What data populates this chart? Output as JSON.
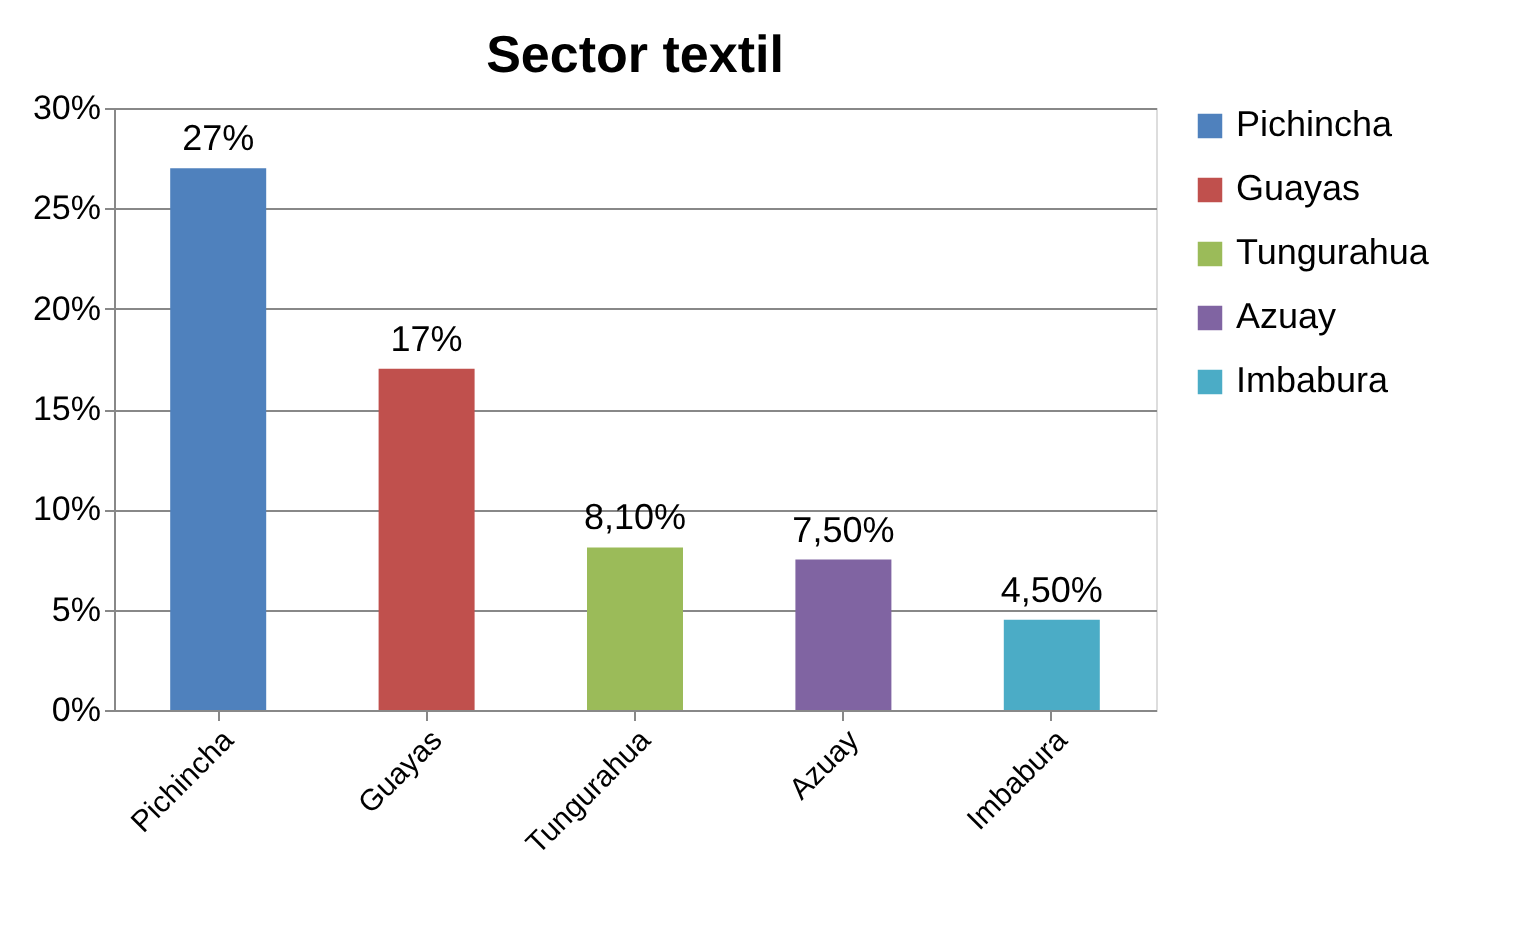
{
  "chart_data": {
    "type": "bar",
    "title": "Sector textil",
    "categories": [
      "Pichincha",
      "Guayas",
      "Tungurahua",
      "Azuay",
      "Imbabura"
    ],
    "series": [
      {
        "name": "Pichincha",
        "color": "#4f81bd",
        "values": [
          27,
          null,
          null,
          null,
          null
        ],
        "value_labels": [
          "27%",
          null,
          null,
          null,
          null
        ]
      },
      {
        "name": "Guayas",
        "color": "#c0504d",
        "values": [
          null,
          17,
          null,
          null,
          null
        ],
        "value_labels": [
          null,
          "17%",
          null,
          null,
          null
        ]
      },
      {
        "name": "Tungurahua",
        "color": "#9bbb59",
        "values": [
          null,
          null,
          8.1,
          null,
          null
        ],
        "value_labels": [
          null,
          null,
          "8,10%",
          null,
          null
        ]
      },
      {
        "name": "Azuay",
        "color": "#8064a2",
        "values": [
          null,
          null,
          null,
          7.5,
          null
        ],
        "value_labels": [
          null,
          null,
          null,
          "7,50%",
          null
        ]
      },
      {
        "name": "Imbabura",
        "color": "#4bacc6",
        "values": [
          null,
          null,
          null,
          null,
          4.5
        ],
        "value_labels": [
          null,
          null,
          null,
          null,
          "4,50%"
        ]
      }
    ],
    "stacked": true,
    "ylim": [
      0,
      30
    ],
    "yticks": [
      {
        "value": 0,
        "label": "0%"
      },
      {
        "value": 5,
        "label": "5%"
      },
      {
        "value": 10,
        "label": "10%"
      },
      {
        "value": 15,
        "label": "15%"
      },
      {
        "value": 20,
        "label": "20%"
      },
      {
        "value": 25,
        "label": "25%"
      },
      {
        "value": 30,
        "label": "30%"
      }
    ],
    "grid": "y",
    "legend": "right"
  }
}
